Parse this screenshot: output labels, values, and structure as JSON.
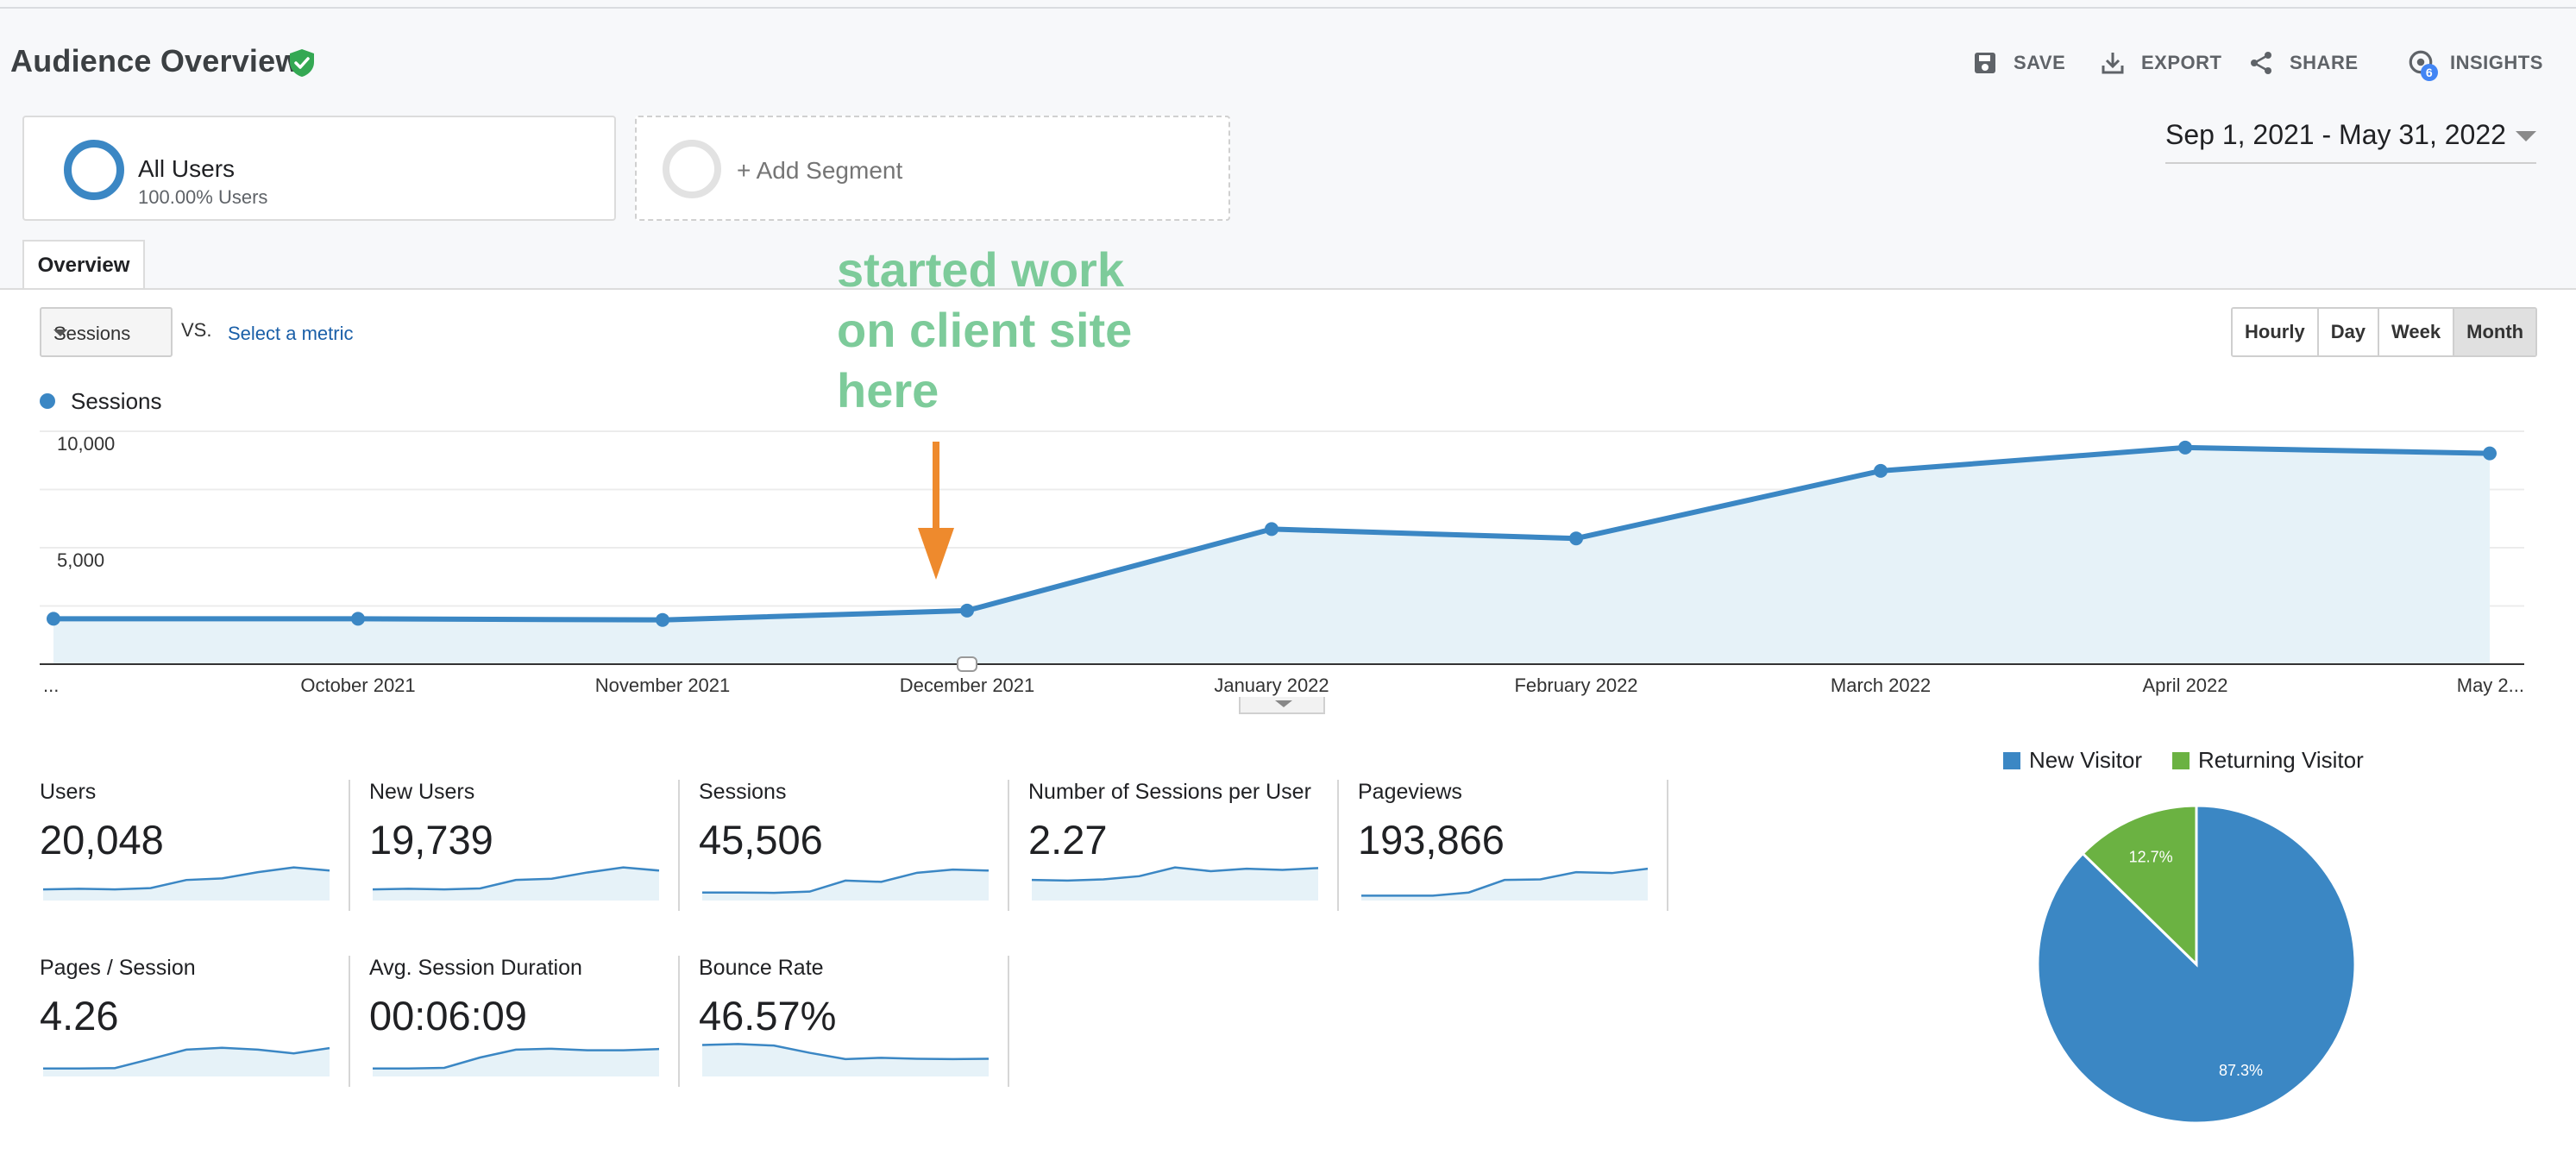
{
  "header": {
    "title": "Audience Overview",
    "actions": {
      "save": "SAVE",
      "export": "EXPORT",
      "share": "SHARE",
      "insights": "INSIGHTS",
      "insights_badge": "6"
    }
  },
  "segments": {
    "all_users_title": "All Users",
    "all_users_sub": "100.00% Users",
    "add_segment": "+ Add Segment"
  },
  "date_range": "Sep 1, 2021 - May 31, 2022",
  "tabs": {
    "overview": "Overview"
  },
  "chart_controls": {
    "metric": "Sessions",
    "vs": "VS.",
    "select_metric": "Select a metric",
    "periods": [
      "Hourly",
      "Day",
      "Week",
      "Month"
    ],
    "selected_period": "Month"
  },
  "annotation": "started work\non client site\nhere",
  "chart_data": {
    "type": "area",
    "series": [
      {
        "name": "Sessions",
        "values": [
          1950,
          1950,
          1900,
          2300,
          5800,
          5400,
          8300,
          9300,
          9050
        ]
      }
    ],
    "x_labels": [
      "...",
      "October 2021",
      "November 2021",
      "December 2021",
      "January 2022",
      "February 2022",
      "March 2022",
      "April 2022",
      "May 2..."
    ],
    "y_ticks": [
      "10,000",
      "5,000"
    ],
    "ylim": [
      0,
      10000
    ],
    "color": "#3b87c4",
    "fill": "#e6f2f8"
  },
  "metrics": [
    {
      "label": "Users",
      "value": "20,048",
      "spark": [
        3,
        3.2,
        3,
        3.4,
        6,
        6.5,
        8.5,
        10,
        9
      ]
    },
    {
      "label": "New Users",
      "value": "19,739",
      "spark": [
        3,
        3.2,
        3,
        3.3,
        6,
        6.4,
        8.4,
        10,
        9
      ]
    },
    {
      "label": "Sessions",
      "value": "45,506",
      "spark": [
        2,
        2,
        1.9,
        2.3,
        5.8,
        5.4,
        8.3,
        9.3,
        9
      ]
    },
    {
      "label": "Number of Sessions per User",
      "value": "2.27",
      "spark": [
        6,
        5.8,
        6.2,
        7.2,
        10,
        8.8,
        9.6,
        9.2,
        9.8
      ]
    },
    {
      "label": "Pageviews",
      "value": "193,866",
      "spark": [
        1,
        1,
        1,
        2,
        6,
        6.2,
        8.5,
        8.2,
        9.6
      ]
    },
    {
      "label": "Pages / Session",
      "value": "4.26",
      "spark": [
        2,
        2,
        2.1,
        5,
        8,
        8.6,
        8,
        6.8,
        8.5
      ]
    },
    {
      "label": "Avg. Session Duration",
      "value": "00:06:09",
      "spark": [
        2,
        2,
        2.2,
        5.5,
        8,
        8.3,
        7.8,
        7.8,
        8.2
      ]
    },
    {
      "label": "Bounce Rate",
      "value": "46.57%",
      "spark": [
        9.5,
        9.8,
        9.3,
        7,
        5,
        5.4,
        5.1,
        5,
        5.1
      ]
    }
  ],
  "pie": {
    "legend": [
      "New Visitor",
      "Returning Visitor"
    ],
    "values": [
      87.3,
      12.7
    ],
    "labels": [
      "87.3%",
      "12.7%"
    ],
    "colors": [
      "#3b87c4",
      "#6bb242"
    ]
  }
}
